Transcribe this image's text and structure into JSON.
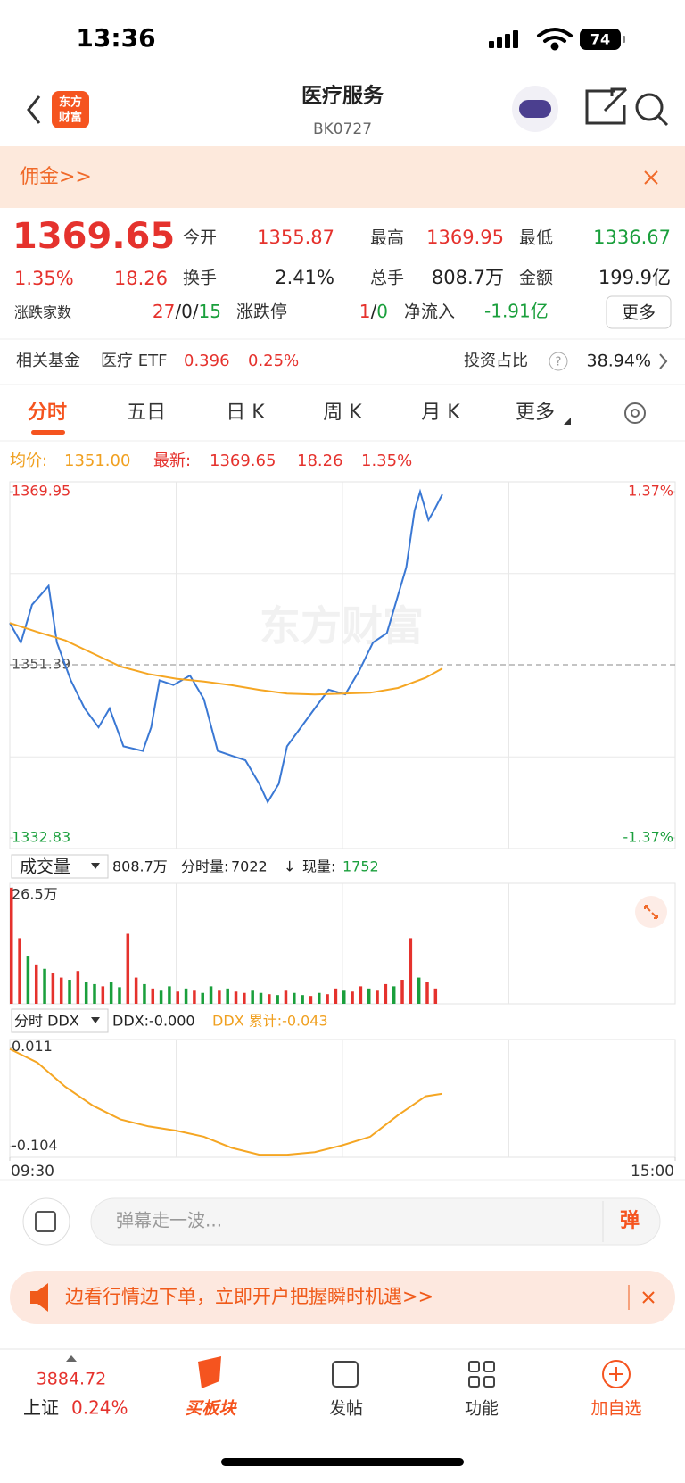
{
  "status_bar": {
    "time": "13:36",
    "battery": "74"
  },
  "header": {
    "logo": [
      "东方",
      "财富"
    ],
    "title": "医疗服务",
    "code": "BK0727"
  },
  "banner": {
    "text": "佣金>>"
  },
  "quote": {
    "price": "1369.65",
    "pct": "1.35%",
    "change": "18.26",
    "stats": [
      {
        "label": "今开",
        "value": "1355.87"
      },
      {
        "label": "最高",
        "value": "1369.95"
      },
      {
        "label": "最低",
        "value": "1336.67"
      },
      {
        "label": "换手",
        "value": "2.41%"
      },
      {
        "label": "总手",
        "value": "808.7万"
      },
      {
        "label": "金额",
        "value": "199.9亿"
      }
    ],
    "breadth": {
      "label": "涨跌家数",
      "up": "27",
      "flat": "0",
      "down": "15",
      "sep": "/"
    },
    "limit": {
      "label": "涨跌停",
      "up": "1",
      "down": "0",
      "sep": "/"
    },
    "flow": {
      "label": "净流入",
      "value": "-1.91亿"
    },
    "more": "更多"
  },
  "fund": {
    "label": "相关基金",
    "name": "医疗 ETF",
    "price": "0.396",
    "pct": "0.25%",
    "ratio_label": "投资占比",
    "ratio_help": "?",
    "ratio": "38.94%"
  },
  "tabs": [
    "分时",
    "五日",
    "日 K",
    "周 K",
    "月 K",
    "更多"
  ],
  "legend": {
    "avg_label": "均价:",
    "avg": "1351.00",
    "latest_label": "最新:",
    "latest": "1369.65",
    "change": "18.26",
    "pct": "1.35%"
  },
  "chart_data": [
    {
      "type": "line",
      "watermark": "东方财富",
      "xlim": [
        0,
        240
      ],
      "ylim": [
        1332.83,
        1369.95
      ],
      "yticks": [
        1369.95,
        1351.39,
        1332.83
      ],
      "y2lim": [
        -1.37,
        1.37
      ],
      "y2ticks": [
        {
          "value": 1.37,
          "label": "1.37%"
        },
        {
          "value": -1.37,
          "label": "-1.37%"
        }
      ],
      "series": [
        {
          "color": "#3a78d4",
          "x": [
            0,
            4,
            8,
            14,
            17,
            22,
            27,
            32,
            36,
            41,
            48,
            51,
            54,
            59,
            65,
            70,
            75,
            80,
            85,
            90,
            93,
            97,
            100,
            105,
            110,
            115,
            121,
            126,
            131,
            136,
            139,
            143,
            146,
            148,
            151,
            153,
            156
          ],
          "values": [
            1355.87,
            1353.77,
            1357.82,
            1359.84,
            1353.77,
            1349.73,
            1346.7,
            1344.68,
            1346.7,
            1342.65,
            1342.15,
            1344.68,
            1349.73,
            1349.22,
            1350.23,
            1347.71,
            1342.15,
            1341.64,
            1341.14,
            1338.61,
            1336.67,
            1338.61,
            1342.65,
            1344.68,
            1346.7,
            1348.72,
            1348.22,
            1350.74,
            1353.77,
            1354.78,
            1357.82,
            1361.86,
            1367.93,
            1369.95,
            1366.92,
            1367.93,
            1369.65
          ]
        },
        {
          "color": "#f5a623",
          "x": [
            0,
            10,
            20,
            30,
            40,
            50,
            60,
            70,
            80,
            90,
            100,
            110,
            120,
            130,
            140,
            150,
            156
          ],
          "values": [
            1355.87,
            1354.9,
            1354.0,
            1352.6,
            1351.2,
            1350.4,
            1349.9,
            1349.6,
            1349.2,
            1348.7,
            1348.3,
            1348.2,
            1348.3,
            1348.4,
            1348.9,
            1350.0,
            1351.0
          ]
        }
      ]
    },
    {
      "type": "bar",
      "xlim": [
        0,
        240
      ],
      "ylim": [
        0,
        265000
      ],
      "yticks": [
        {
          "value": 265000,
          "label": "26.5万"
        }
      ],
      "up_color": "#e5322d",
      "down_color": "#1a9f3c",
      "x": [
        0,
        3,
        6,
        9,
        12,
        15,
        18,
        21,
        24,
        27,
        30,
        33,
        36,
        39,
        42,
        45,
        48,
        51,
        54,
        57,
        60,
        63,
        66,
        69,
        72,
        75,
        78,
        81,
        84,
        87,
        90,
        93,
        96,
        99,
        102,
        105,
        108,
        111,
        114,
        117,
        120,
        123,
        126,
        129,
        132,
        135,
        138,
        141,
        144,
        147,
        150,
        153
      ],
      "values": [
        265000,
        150000,
        110000,
        90000,
        80000,
        70000,
        60000,
        55000,
        75000,
        50000,
        45000,
        40000,
        50000,
        38000,
        160000,
        60000,
        45000,
        35000,
        30000,
        40000,
        28000,
        35000,
        30000,
        25000,
        40000,
        30000,
        35000,
        28000,
        25000,
        30000,
        25000,
        22000,
        20000,
        30000,
        25000,
        20000,
        18000,
        25000,
        22000,
        35000,
        30000,
        28000,
        40000,
        35000,
        30000,
        45000,
        40000,
        55000,
        150000,
        60000,
        50000,
        35000
      ],
      "up": [
        true,
        true,
        false,
        true,
        false,
        true,
        true,
        false,
        true,
        false,
        false,
        true,
        false,
        false,
        true,
        true,
        false,
        true,
        false,
        false,
        true,
        false,
        true,
        false,
        false,
        true,
        false,
        true,
        true,
        false,
        false,
        true,
        false,
        true,
        false,
        false,
        true,
        false,
        true,
        true,
        false,
        true,
        true,
        false,
        true,
        true,
        false,
        true,
        true,
        false,
        true,
        true
      ]
    },
    {
      "type": "line",
      "xlim": [
        0,
        240
      ],
      "ylim": [
        -0.117,
        0.02
      ],
      "yticks": [
        0.011,
        -0.104
      ],
      "xticks": [
        {
          "value": 0,
          "label": "09:30"
        },
        {
          "value": 240,
          "label": "15:00"
        }
      ],
      "series": [
        {
          "color": "#f5a623",
          "x": [
            0,
            10,
            20,
            30,
            40,
            50,
            60,
            70,
            80,
            90,
            100,
            110,
            120,
            130,
            140,
            145,
            150,
            156
          ],
          "values": [
            0.009,
            -0.007,
            -0.035,
            -0.057,
            -0.073,
            -0.081,
            -0.086,
            -0.093,
            -0.106,
            -0.114,
            -0.114,
            -0.111,
            -0.103,
            -0.093,
            -0.068,
            -0.057,
            -0.046,
            -0.043
          ]
        }
      ]
    }
  ],
  "volume_header": {
    "indicator": "成交量",
    "total": "808.7万",
    "per_label": "分时量:",
    "per": "7022",
    "arrow": "↓",
    "now_label": "现量:",
    "now": "1752"
  },
  "ddx_header": {
    "indicator": "分时 DDX",
    "ddx": "DDX:-0.000",
    "cum": "DDX 累计:-0.043"
  },
  "comment": {
    "placeholder": "弹幕走一波...",
    "button": "弹"
  },
  "ad": {
    "text": "边看行情边下单，立即开户把握瞬时机遇>>"
  },
  "nav": {
    "index_value": "3884.72",
    "index_name": "上证",
    "index_pct": "0.24%",
    "items": [
      "买板块",
      "发帖",
      "功能",
      "加自选"
    ]
  }
}
